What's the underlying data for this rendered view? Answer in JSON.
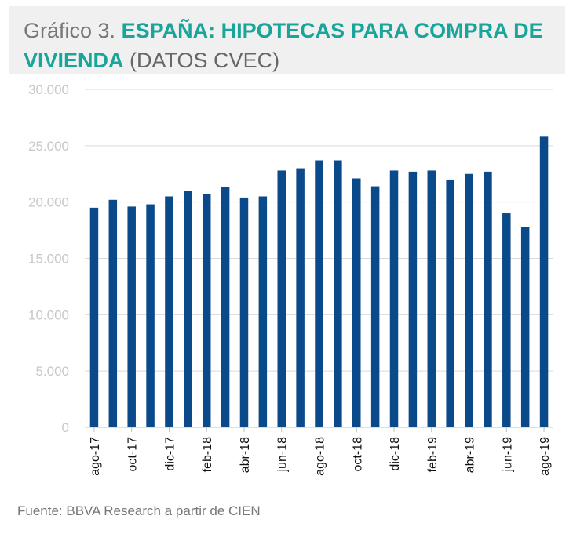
{
  "title": {
    "prefix": "Gráfico 3.",
    "main": "ESPAÑA: HIPOTECAS PARA COMPRA DE VIVIENDA",
    "suffix": "(DATOS CVEC)"
  },
  "source": "Fuente: BBVA Research a partir de CIEN",
  "colors": {
    "bar": "#0a4a8a",
    "title_accent": "#1aa59a",
    "grid": "#d9d9d9"
  },
  "chart_data": {
    "type": "bar",
    "title": "ESPAÑA: HIPOTECAS PARA COMPRA DE VIVIENDA (DATOS CVEC)",
    "xlabel": "",
    "ylabel": "",
    "ylim": [
      0,
      30000
    ],
    "yticks": [
      0,
      5000,
      10000,
      15000,
      20000,
      25000,
      30000
    ],
    "ytick_labels": [
      "0",
      "5.000",
      "10.000",
      "15.000",
      "20.000",
      "25.000",
      "30.000"
    ],
    "categories": [
      "ago-17",
      "sep-17",
      "oct-17",
      "nov-17",
      "dic-17",
      "ene-18",
      "feb-18",
      "mar-18",
      "abr-18",
      "may-18",
      "jun-18",
      "jul-18",
      "ago-18",
      "sep-18",
      "oct-18",
      "nov-18",
      "dic-18",
      "ene-19",
      "feb-19",
      "mar-19",
      "abr-19",
      "may-19",
      "jun-19",
      "jul-19",
      "ago-19"
    ],
    "visible_tick_labels": [
      "ago-17",
      "oct-17",
      "dic-17",
      "feb-18",
      "abr-18",
      "jun-18",
      "ago-18",
      "oct-18",
      "dic-18",
      "feb-19",
      "abr-19",
      "jun-19",
      "ago-19"
    ],
    "values": [
      19500,
      20200,
      19600,
      19800,
      20500,
      21000,
      20700,
      21300,
      20400,
      20500,
      22800,
      23000,
      23700,
      23700,
      22100,
      21400,
      22800,
      22700,
      22800,
      22000,
      22500,
      22700,
      19000,
      17800,
      25800
    ],
    "grid": true,
    "legend": "none"
  }
}
